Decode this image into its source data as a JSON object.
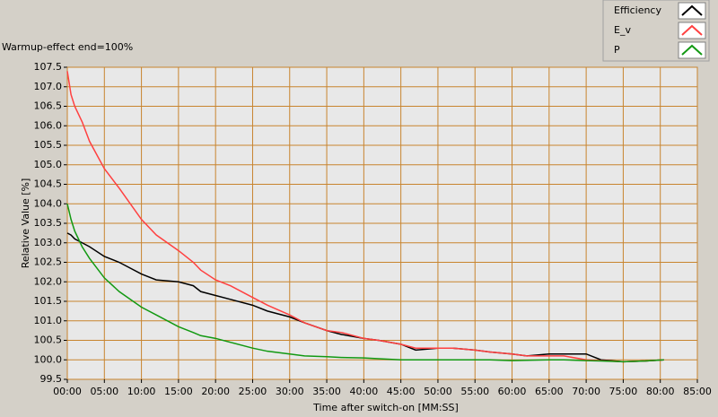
{
  "chart_data": {
    "type": "line",
    "annotation": "Warmup-effect end=100%",
    "x_label": "Time after switch-on [MM:SS]",
    "y_label": "Relative Value [%]",
    "x": [
      0,
      0.5,
      1,
      2,
      3,
      5,
      7,
      10,
      12,
      15,
      17,
      18,
      20,
      22,
      25,
      27,
      30,
      32,
      35,
      37,
      40,
      42,
      45,
      47,
      50,
      52,
      55,
      57,
      60,
      62,
      65,
      67,
      70,
      72,
      75,
      78,
      80.5
    ],
    "series": [
      {
        "name": "Efficiency",
        "color": "#000000",
        "values": [
          103.25,
          103.2,
          103.1,
          103.0,
          102.9,
          102.65,
          102.5,
          102.2,
          102.05,
          102.0,
          101.9,
          101.75,
          101.65,
          101.55,
          101.4,
          101.25,
          101.1,
          100.95,
          100.75,
          100.65,
          100.55,
          100.5,
          100.4,
          100.25,
          100.3,
          100.3,
          100.25,
          100.2,
          100.15,
          100.1,
          100.15,
          100.15,
          100.15,
          100.0,
          99.95,
          99.97,
          100.0
        ]
      },
      {
        "name": "E_v",
        "color": "#ff4040",
        "values": [
          107.4,
          106.8,
          106.5,
          106.1,
          105.6,
          104.9,
          104.4,
          103.6,
          103.2,
          102.8,
          102.5,
          102.3,
          102.05,
          101.9,
          101.6,
          101.4,
          101.15,
          100.95,
          100.75,
          100.7,
          100.55,
          100.5,
          100.4,
          100.3,
          100.3,
          100.3,
          100.25,
          100.2,
          100.15,
          100.1,
          100.1,
          100.1,
          100.0,
          99.98,
          99.95,
          99.97,
          100.0
        ]
      },
      {
        "name": "P",
        "color": "#129912",
        "values": [
          104.0,
          103.6,
          103.3,
          102.9,
          102.6,
          102.1,
          101.75,
          101.35,
          101.15,
          100.85,
          100.7,
          100.62,
          100.55,
          100.45,
          100.3,
          100.22,
          100.15,
          100.1,
          100.08,
          100.06,
          100.05,
          100.03,
          100.0,
          100.0,
          100.0,
          100.0,
          100.0,
          100.0,
          99.98,
          99.99,
          100.0,
          100.0,
          99.98,
          99.97,
          99.95,
          99.97,
          100.0
        ]
      }
    ],
    "xlim": [
      0,
      85
    ],
    "xticks": [
      {
        "value": 0,
        "label": "00:00"
      },
      {
        "value": 5,
        "label": "05:00"
      },
      {
        "value": 10,
        "label": "10:00"
      },
      {
        "value": 15,
        "label": "15:00"
      },
      {
        "value": 20,
        "label": "20:00"
      },
      {
        "value": 25,
        "label": "25:00"
      },
      {
        "value": 30,
        "label": "30:00"
      },
      {
        "value": 35,
        "label": "35:00"
      },
      {
        "value": 40,
        "label": "40:00"
      },
      {
        "value": 45,
        "label": "45:00"
      },
      {
        "value": 50,
        "label": "50:00"
      },
      {
        "value": 55,
        "label": "55:00"
      },
      {
        "value": 60,
        "label": "60:00"
      },
      {
        "value": 65,
        "label": "65:00"
      },
      {
        "value": 70,
        "label": "70:00"
      },
      {
        "value": 75,
        "label": "75:00"
      },
      {
        "value": 80,
        "label": "80:00"
      },
      {
        "value": 85,
        "label": "85:00"
      }
    ],
    "ylim": [
      99.5,
      107.5
    ],
    "yticks": [
      99.5,
      {
        "value": 100,
        "label": "100.0"
      },
      100.5,
      {
        "value": 101,
        "label": "101.0"
      },
      101.5,
      {
        "value": 102,
        "label": "102.0"
      },
      102.5,
      {
        "value": 103,
        "label": "103.0"
      },
      103.5,
      {
        "value": 104,
        "label": "104.0"
      },
      104.5,
      {
        "value": 105,
        "label": "105.0"
      },
      105.5,
      {
        "value": 106,
        "label": "106.0"
      },
      106.5,
      {
        "value": 107,
        "label": "107.0"
      },
      107.5
    ],
    "grid": true,
    "grid_color": "#c8842e",
    "legend": "top-right"
  }
}
